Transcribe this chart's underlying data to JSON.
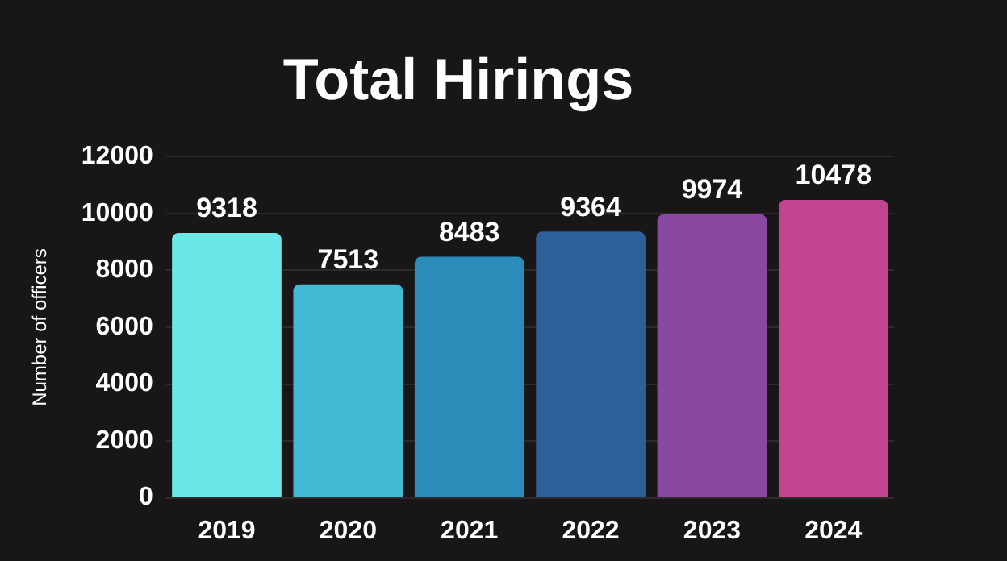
{
  "chart_data": {
    "type": "bar",
    "title": "Total Hirings",
    "ylabel": "Number of officers",
    "categories": [
      "2019",
      "2020",
      "2021",
      "2022",
      "2023",
      "2024"
    ],
    "values": [
      9318,
      7513,
      8483,
      9364,
      9974,
      10478
    ],
    "colors": [
      "#6de6ea",
      "#44b9d6",
      "#2b8bb9",
      "#2d5f98",
      "#8a48a2",
      "#c1448f"
    ],
    "ylim": [
      0,
      12000
    ],
    "yticks": [
      0,
      2000,
      4000,
      6000,
      8000,
      10000,
      12000
    ],
    "grid": "y",
    "data_labels": true
  }
}
